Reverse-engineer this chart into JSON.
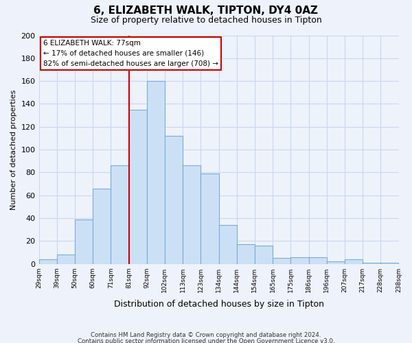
{
  "title": "6, ELIZABETH WALK, TIPTON, DY4 0AZ",
  "subtitle": "Size of property relative to detached houses in Tipton",
  "xlabel": "Distribution of detached houses by size in Tipton",
  "ylabel": "Number of detached properties",
  "bin_labels": [
    "29sqm",
    "39sqm",
    "50sqm",
    "60sqm",
    "71sqm",
    "81sqm",
    "92sqm",
    "102sqm",
    "113sqm",
    "123sqm",
    "134sqm",
    "144sqm",
    "154sqm",
    "165sqm",
    "175sqm",
    "186sqm",
    "196sqm",
    "207sqm",
    "217sqm",
    "228sqm",
    "238sqm"
  ],
  "bar_values": [
    4,
    8,
    39,
    66,
    86,
    135,
    160,
    112,
    86,
    79,
    34,
    17,
    16,
    5,
    6,
    6,
    2,
    4,
    1,
    1
  ],
  "bar_color": "#cce0f5",
  "bar_edge_color": "#7aaadd",
  "grid_color": "#c8d8ee",
  "background_color": "#eef2fb",
  "vline_color": "#cc0000",
  "annotation_line1": "6 ELIZABETH WALK: 77sqm",
  "annotation_line2": "← 17% of detached houses are smaller (146)",
  "annotation_line3": "82% of semi-detached houses are larger (708) →",
  "annotation_box_color": "#ffffff",
  "annotation_box_edge": "#cc0000",
  "ylim": [
    0,
    200
  ],
  "yticks": [
    0,
    20,
    40,
    60,
    80,
    100,
    120,
    140,
    160,
    180,
    200
  ],
  "vline_bin_index": 5,
  "footnote1": "Contains HM Land Registry data © Crown copyright and database right 2024.",
  "footnote2": "Contains public sector information licensed under the Open Government Licence v3.0."
}
